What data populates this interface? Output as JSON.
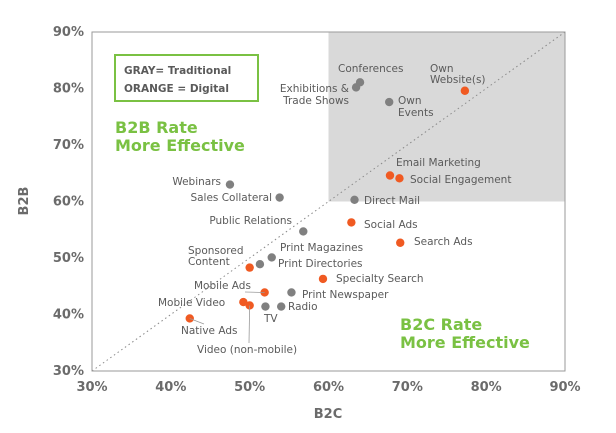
{
  "chart_data": {
    "type": "scatter",
    "xlabel": "B2C",
    "ylabel": "B2B",
    "xlim": [
      30,
      90
    ],
    "ylim": [
      30,
      90
    ],
    "x_ticks": [
      "30%",
      "40%",
      "50%",
      "60%",
      "70%",
      "80%",
      "90%"
    ],
    "y_ticks": [
      "30%",
      "40%",
      "50%",
      "60%",
      "70%",
      "80%",
      "90%"
    ],
    "diagonal_reference_line": true,
    "shaded_region": {
      "x": [
        60,
        90
      ],
      "y": [
        60,
        90
      ]
    },
    "legend": [
      "GRAY= Traditional",
      "ORANGE = Digital"
    ],
    "annotations": {
      "b2b": [
        "B2B Rate",
        "More Effective"
      ],
      "b2c": [
        "B2C Rate",
        "More Effective"
      ]
    },
    "colors": {
      "traditional": "#808080",
      "digital": "#f05a22",
      "annotation": "#7ac143",
      "shaded": "#d9d9d9",
      "axis_text": "#6b6b6b"
    },
    "series": [
      {
        "name": "Traditional",
        "points": [
          {
            "label": "Conferences",
            "x": 64.0,
            "y": 81.1
          },
          {
            "label": "Exhibitions & Trade Shows",
            "x": 63.5,
            "y": 80.2
          },
          {
            "label": "Own Events",
            "x": 67.7,
            "y": 77.6
          },
          {
            "label": "Webinars",
            "x": 47.5,
            "y": 63.0
          },
          {
            "label": "Sales Collateral",
            "x": 53.8,
            "y": 60.7
          },
          {
            "label": "Direct Mail",
            "x": 63.3,
            "y": 60.3
          },
          {
            "label": "Public Relations",
            "x": 56.8,
            "y": 54.7
          },
          {
            "label": "Print Magazines",
            "x": 52.8,
            "y": 50.1
          },
          {
            "label": "Print Directories",
            "x": 51.3,
            "y": 48.9
          },
          {
            "label": "Print Newspaper",
            "x": 55.3,
            "y": 43.9
          },
          {
            "label": "TV",
            "x": 52.0,
            "y": 41.4
          },
          {
            "label": "Radio",
            "x": 54.0,
            "y": 41.4
          }
        ]
      },
      {
        "name": "Digital",
        "points": [
          {
            "label": "Own Website(s)",
            "x": 77.3,
            "y": 79.6
          },
          {
            "label": "Email Marketing",
            "x": 67.8,
            "y": 64.6
          },
          {
            "label": "Social Engagement",
            "x": 69.0,
            "y": 64.1
          },
          {
            "label": "Social Ads",
            "x": 62.9,
            "y": 56.3
          },
          {
            "label": "Search Ads",
            "x": 69.1,
            "y": 52.7
          },
          {
            "label": "Sponsored Content",
            "x": 50.0,
            "y": 48.3
          },
          {
            "label": "Specialty Search",
            "x": 59.3,
            "y": 46.3
          },
          {
            "label": "Mobile Ads",
            "x": 51.9,
            "y": 43.9
          },
          {
            "label": "Mobile Video",
            "x": 49.2,
            "y": 42.2
          },
          {
            "label": "Video (non-mobile)",
            "x": 50.0,
            "y": 41.6
          },
          {
            "label": "Native Ads",
            "x": 42.4,
            "y": 39.3
          }
        ]
      }
    ]
  }
}
